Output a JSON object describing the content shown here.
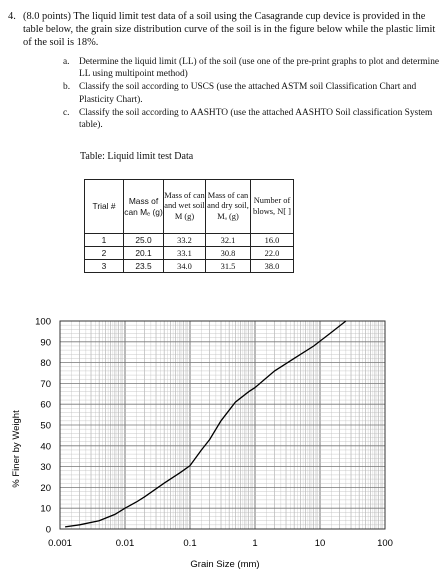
{
  "question": {
    "number": "4.",
    "text": "(8.0 points) The liquid limit test data of a soil using the Casagrande cup device is provided in the table below, the grain size distribution curve of the soil is in the figure below while the plastic limit of the soil is 18%.",
    "items": [
      {
        "label": "a.",
        "text": "Determine the liquid limit (LL) of the soil (use one of the pre-print graphs to plot and determine LL using multipoint method)"
      },
      {
        "label": "b.",
        "text": "Classify the soil according to USCS (use the attached ASTM soil Classification Chart and Plasticity Chart)."
      },
      {
        "label": "c.",
        "text": "Classify the soil according to AASHTO (use the attached AASHTO Soil classification System table)."
      }
    ]
  },
  "table": {
    "caption": "Table: Liquid limit test Data",
    "headers": [
      "Trial #",
      "Mass of can Mₑ (g)",
      "Mass of can and wet soil M (g)",
      "Mass of can and dry soil, Mₐ (g)",
      "Number of blows, N[ ]"
    ],
    "rows": [
      [
        "1",
        "25.0",
        "33.2",
        "32.1",
        "16.0"
      ],
      [
        "2",
        "20.1",
        "33.1",
        "30.8",
        "22.0"
      ],
      [
        "3",
        "23.5",
        "34.0",
        "31.5",
        "38.0"
      ]
    ]
  },
  "chart_data": {
    "type": "line",
    "xlabel": "Grain Size (mm)",
    "ylabel": "% Finer by Weight",
    "xscale": "log",
    "xlim": [
      0.001,
      100
    ],
    "ylim": [
      0,
      100
    ],
    "xticks": [
      "0.001",
      "0.01",
      "0.1",
      "1",
      "10",
      "100"
    ],
    "yticks": [
      "0",
      "10",
      "20",
      "30",
      "40",
      "50",
      "60",
      "70",
      "80",
      "90",
      "100"
    ],
    "grid": true,
    "series": [
      {
        "x": [
          0.0012,
          0.002,
          0.004,
          0.007,
          0.01,
          0.015,
          0.02,
          0.04,
          0.07,
          0.1,
          0.15,
          0.2,
          0.3,
          0.5,
          0.8,
          1.0,
          2.0,
          4.0,
          8.0,
          15.0,
          25.0
        ],
        "y": [
          1,
          2,
          4,
          7,
          10,
          13,
          15.5,
          22,
          27,
          30.5,
          38,
          43,
          52,
          61,
          66,
          68,
          76,
          82,
          88,
          94.5,
          100
        ]
      }
    ]
  }
}
